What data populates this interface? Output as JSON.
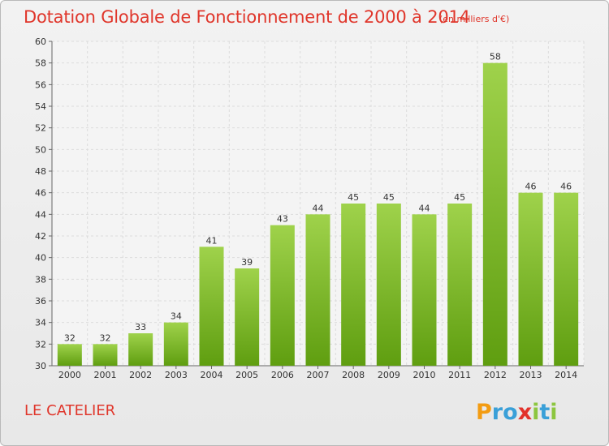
{
  "header": {
    "title": "Dotation Globale de Fonctionnement de 2000 à 2014",
    "unit": "(en milliers d'€)"
  },
  "footer": {
    "commune": "LE CATELIER",
    "logo_text": "Proxiti"
  },
  "colors": {
    "title": "#e0362b",
    "bar_top": "#9fd24b",
    "bar_bottom": "#5f9e10",
    "logo_p": "#f39c12",
    "logo_r": "#3aa0d8",
    "logo_o": "#3aa0d8",
    "logo_x": "#e2322b",
    "logo_i": "#8cc63f",
    "logo_t": "#3aa0d8",
    "logo_i2": "#8cc63f"
  },
  "chart_data": {
    "type": "bar",
    "title": "Dotation Globale de Fonctionnement de 2000 à 2014",
    "subtitle": "(en milliers d'€)",
    "xlabel": "",
    "ylabel": "",
    "categories": [
      "2000",
      "2001",
      "2002",
      "2003",
      "2004",
      "2005",
      "2006",
      "2007",
      "2008",
      "2009",
      "2010",
      "2011",
      "2012",
      "2013",
      "2014"
    ],
    "values": [
      32,
      32,
      33,
      34,
      41,
      39,
      43,
      44,
      45,
      45,
      44,
      45,
      58,
      46,
      46
    ],
    "ylim": [
      30,
      60
    ],
    "yticks": [
      30,
      32,
      34,
      36,
      38,
      40,
      42,
      44,
      46,
      48,
      50,
      52,
      54,
      56,
      58,
      60
    ],
    "grid": true,
    "legend": "none"
  }
}
